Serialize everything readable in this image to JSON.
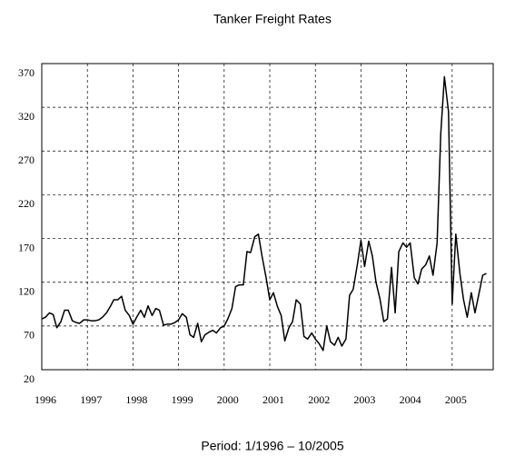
{
  "chart_data": {
    "type": "line",
    "title": "Tanker Freight Rates",
    "x_label": "Period: 1/1996 – 10/2005",
    "xlim": [
      1996,
      2005.9
    ],
    "xticks": [
      1996,
      1997,
      1998,
      1999,
      2000,
      2001,
      2002,
      2003,
      2004,
      2005
    ],
    "ylim": [
      20,
      370
    ],
    "yticks": [
      20,
      70,
      120,
      170,
      220,
      270,
      320,
      370
    ],
    "grid": true,
    "x": [
      1996.0,
      1996.08,
      1996.17,
      1996.25,
      1996.33,
      1996.42,
      1996.5,
      1996.58,
      1996.67,
      1996.75,
      1996.83,
      1996.92,
      1997.0,
      1997.08,
      1997.17,
      1997.25,
      1997.33,
      1997.42,
      1997.5,
      1997.58,
      1997.67,
      1997.75,
      1997.83,
      1997.92,
      1998.0,
      1998.08,
      1998.17,
      1998.25,
      1998.33,
      1998.42,
      1998.5,
      1998.58,
      1998.67,
      1998.75,
      1998.83,
      1998.92,
      1999.0,
      1999.08,
      1999.17,
      1999.25,
      1999.33,
      1999.42,
      1999.5,
      1999.58,
      1999.67,
      1999.75,
      1999.83,
      1999.92,
      2000.0,
      2000.08,
      2000.17,
      2000.25,
      2000.33,
      2000.42,
      2000.5,
      2000.58,
      2000.67,
      2000.75,
      2000.83,
      2000.92,
      2001.0,
      2001.08,
      2001.17,
      2001.25,
      2001.33,
      2001.42,
      2001.5,
      2001.58,
      2001.67,
      2001.75,
      2001.83,
      2001.92,
      2002.0,
      2002.08,
      2002.17,
      2002.25,
      2002.33,
      2002.42,
      2002.5,
      2002.58,
      2002.67,
      2002.75,
      2002.83,
      2002.92,
      2003.0,
      2003.08,
      2003.17,
      2003.25,
      2003.33,
      2003.42,
      2003.5,
      2003.58,
      2003.67,
      2003.75,
      2003.83,
      2003.92,
      2004.0,
      2004.08,
      2004.17,
      2004.25,
      2004.33,
      2004.42,
      2004.5,
      2004.58,
      2004.67,
      2004.75,
      2004.83,
      2004.92,
      2005.0,
      2005.08,
      2005.17,
      2005.25,
      2005.33,
      2005.42,
      2005.5,
      2005.58,
      2005.67,
      2005.75
    ],
    "series": [
      {
        "name": "Tanker Freight Rates",
        "color": "#000000",
        "values": [
          78,
          80,
          85,
          83,
          68,
          75,
          88,
          88,
          76,
          74,
          73,
          77,
          77,
          76,
          76,
          77,
          80,
          85,
          92,
          100,
          100,
          104,
          88,
          82,
          72,
          80,
          88,
          80,
          93,
          82,
          90,
          88,
          71,
          72,
          72,
          74,
          77,
          84,
          80,
          60,
          57,
          73,
          52,
          60,
          63,
          65,
          62,
          68,
          70,
          78,
          90,
          115,
          117,
          117,
          155,
          154,
          172,
          175,
          150,
          125,
          100,
          108,
          92,
          82,
          53,
          68,
          75,
          100,
          95,
          58,
          55,
          62,
          55,
          50,
          42,
          70,
          52,
          48,
          57,
          47,
          55,
          105,
          112,
          140,
          168,
          138,
          167,
          150,
          120,
          100,
          75,
          78,
          137,
          85,
          155,
          165,
          160,
          165,
          125,
          118,
          135,
          140,
          150,
          128,
          165,
          290,
          355,
          315,
          95,
          175,
          130,
          100,
          80,
          108,
          85,
          105,
          128,
          130
        ]
      }
    ]
  }
}
